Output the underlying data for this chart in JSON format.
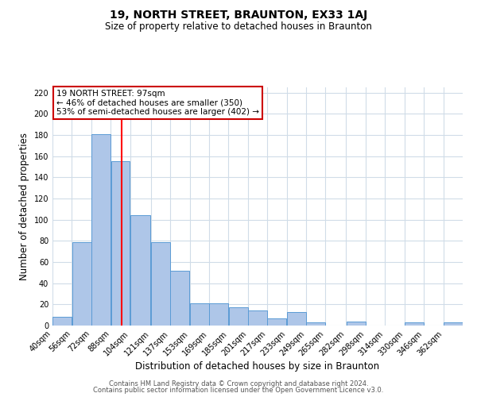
{
  "title": "19, NORTH STREET, BRAUNTON, EX33 1AJ",
  "subtitle": "Size of property relative to detached houses in Braunton",
  "xlabel": "Distribution of detached houses by size in Braunton",
  "ylabel": "Number of detached properties",
  "footnote1": "Contains HM Land Registry data © Crown copyright and database right 2024.",
  "footnote2": "Contains public sector information licensed under the Open Government Licence v3.0.",
  "bar_labels": [
    "40sqm",
    "56sqm",
    "72sqm",
    "88sqm",
    "104sqm",
    "121sqm",
    "137sqm",
    "153sqm",
    "169sqm",
    "185sqm",
    "201sqm",
    "217sqm",
    "233sqm",
    "249sqm",
    "265sqm",
    "282sqm",
    "298sqm",
    "314sqm",
    "330sqm",
    "346sqm",
    "362sqm"
  ],
  "bar_values": [
    8,
    79,
    181,
    155,
    104,
    79,
    52,
    21,
    21,
    17,
    14,
    7,
    13,
    3,
    0,
    4,
    0,
    0,
    3,
    0,
    3
  ],
  "bar_color": "#aec6e8",
  "bar_edgecolor": "#5b9bd5",
  "ylim": [
    0,
    225
  ],
  "yticks": [
    0,
    20,
    40,
    60,
    80,
    100,
    120,
    140,
    160,
    180,
    200,
    220
  ],
  "red_line_x": 97,
  "bin_edges": [
    40,
    56,
    72,
    88,
    104,
    121,
    137,
    153,
    169,
    185,
    201,
    217,
    233,
    249,
    265,
    282,
    298,
    314,
    330,
    346,
    362,
    378
  ],
  "annotation_title": "19 NORTH STREET: 97sqm",
  "annotation_line1": "← 46% of detached houses are smaller (350)",
  "annotation_line2": "53% of semi-detached houses are larger (402) →",
  "annotation_box_color": "#ffffff",
  "annotation_box_edgecolor": "#cc0000",
  "background_color": "#ffffff",
  "grid_color": "#d0dce8",
  "title_fontsize": 10,
  "subtitle_fontsize": 8.5,
  "xlabel_fontsize": 8.5,
  "ylabel_fontsize": 8.5,
  "tick_fontsize": 7,
  "annotation_fontsize": 7.5,
  "footnote_fontsize": 6
}
